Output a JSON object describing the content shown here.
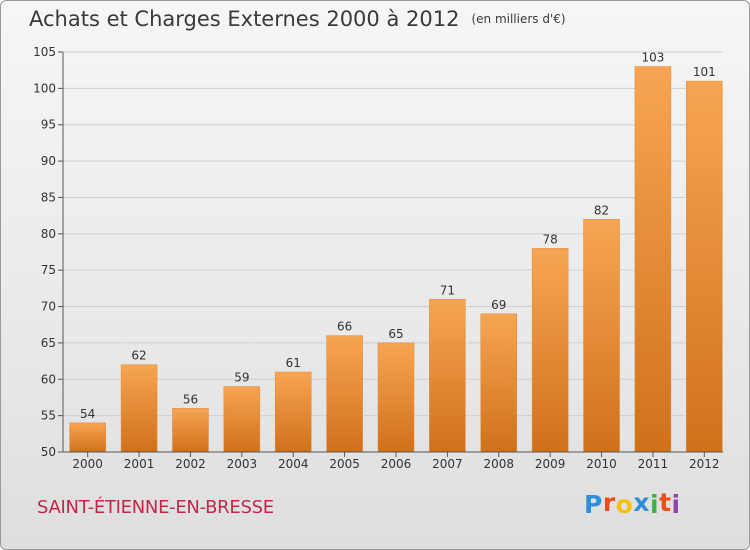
{
  "title": "Achats et Charges Externes 2000 à 2012",
  "subtitle": "(en milliers d'€)",
  "commune": "SAINT-ÉTIENNE-EN-BRESSE",
  "logo": {
    "letters": [
      "P",
      "r",
      "o",
      "x",
      "i",
      "t",
      "i"
    ],
    "colors": [
      "#2f8fd8",
      "#e94e1b",
      "#f4c20d",
      "#2f8fd8",
      "#3cb34a",
      "#e94e1b",
      "#8e44ad"
    ]
  },
  "colors": {
    "bar_top": "#f7a553",
    "bar_bottom": "#d0711a",
    "grid": "#cfcfcf",
    "axis": "#555555",
    "text": "#333333"
  },
  "chart_data": {
    "type": "bar",
    "categories": [
      "2000",
      "2001",
      "2002",
      "2003",
      "2004",
      "2005",
      "2006",
      "2007",
      "2008",
      "2009",
      "2010",
      "2011",
      "2012"
    ],
    "values": [
      54,
      62,
      56,
      59,
      61,
      66,
      65,
      71,
      69,
      78,
      82,
      103,
      101
    ],
    "ylim": [
      50,
      105
    ],
    "yticks": [
      50,
      55,
      60,
      65,
      70,
      75,
      80,
      85,
      90,
      95,
      100,
      105
    ],
    "grid": true,
    "xlabel": "",
    "ylabel": ""
  }
}
